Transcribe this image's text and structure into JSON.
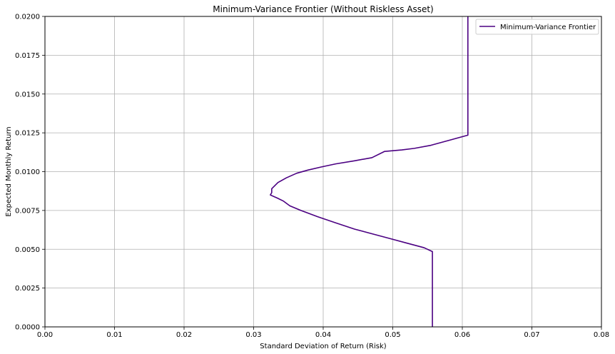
{
  "chart_data": {
    "type": "line",
    "title": "Minimum-Variance Frontier (Without Riskless Asset)",
    "xlabel": "Standard Deviation of Return (Risk)",
    "ylabel": "Expected Monthly Return",
    "xlim": [
      0.0,
      0.08
    ],
    "ylim": [
      0.0,
      0.02
    ],
    "x_ticks": [
      "0.00",
      "0.01",
      "0.02",
      "0.03",
      "0.04",
      "0.05",
      "0.06",
      "0.07",
      "0.08"
    ],
    "y_ticks": [
      "0.0000",
      "0.0025",
      "0.0050",
      "0.0075",
      "0.0100",
      "0.0125",
      "0.0150",
      "0.0175",
      "0.0200"
    ],
    "grid": true,
    "legend_position": "top-right",
    "series": [
      {
        "name": "Minimum-Variance Frontier",
        "color": "#4b0082",
        "points": [
          [
            0.0557,
            0.0
          ],
          [
            0.0557,
            0.00485
          ],
          [
            0.0545,
            0.0051
          ],
          [
            0.052,
            0.0054
          ],
          [
            0.0495,
            0.0057
          ],
          [
            0.047,
            0.006
          ],
          [
            0.0445,
            0.0063
          ],
          [
            0.0418,
            0.0067
          ],
          [
            0.0392,
            0.0071
          ],
          [
            0.0368,
            0.0075
          ],
          [
            0.0352,
            0.0078
          ],
          [
            0.0343,
            0.0081
          ],
          [
            0.0334,
            0.0083
          ],
          [
            0.0324,
            0.0085
          ],
          [
            0.0326,
            0.00865
          ],
          [
            0.0326,
            0.0089
          ],
          [
            0.0335,
            0.0093
          ],
          [
            0.0347,
            0.0096
          ],
          [
            0.0362,
            0.0099
          ],
          [
            0.0378,
            0.0101
          ],
          [
            0.0397,
            0.0103
          ],
          [
            0.0418,
            0.0105
          ],
          [
            0.0445,
            0.0107
          ],
          [
            0.047,
            0.0109
          ],
          [
            0.0488,
            0.0113
          ],
          [
            0.0513,
            0.0114
          ],
          [
            0.0531,
            0.0115
          ],
          [
            0.0555,
            0.0117
          ],
          [
            0.0608,
            0.01235
          ],
          [
            0.0608,
            0.02
          ]
        ]
      }
    ]
  }
}
